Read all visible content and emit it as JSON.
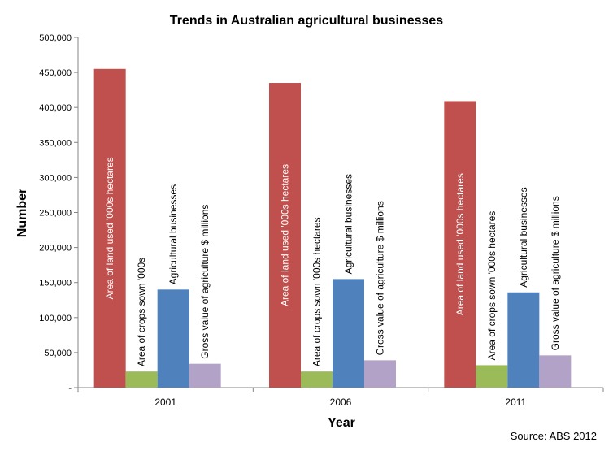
{
  "chart_data": {
    "type": "bar",
    "title": "Trends in Australian agricultural businesses",
    "xlabel": "Year",
    "ylabel": "Number",
    "source": "Source: ABS 2012",
    "categories": [
      "2001",
      "2006",
      "2011"
    ],
    "ylim": [
      0,
      500000
    ],
    "yticks": [
      0,
      50000,
      100000,
      150000,
      200000,
      250000,
      300000,
      350000,
      400000,
      450000,
      500000
    ],
    "ytick_labels": [
      "-",
      "50,000",
      "100,000",
      "150,000",
      "200,000",
      "250,000",
      "300,000",
      "350,000",
      "400,000",
      "450,000",
      "500,000"
    ],
    "grid": false,
    "legend": "none",
    "series": [
      {
        "color": "#c0504d",
        "values": [
          455000,
          435000,
          409000
        ],
        "bar_labels": [
          "Area of land used '000s hectares",
          "Area of land used '000s hectares",
          "Area of land used '000s hectares"
        ]
      },
      {
        "color": "#9bbb59",
        "values": [
          23000,
          23000,
          32000
        ],
        "bar_labels": [
          "Area of crops sown '000s",
          "Area of crops sown '000s hectares",
          "Area of crops sown '000s hectares"
        ]
      },
      {
        "color": "#4f81bd",
        "values": [
          140000,
          155000,
          136000
        ],
        "bar_labels": [
          "Agricultural businesses",
          "Agricultural businesses",
          "Agricultural businesses"
        ]
      },
      {
        "color": "#b3a2c7",
        "values": [
          34000,
          39000,
          46000
        ],
        "bar_labels": [
          "Gross value of agriculture $ millions",
          "Gross value of agriculture $ millions",
          "Gross value of agriculture $ millions"
        ]
      }
    ]
  }
}
